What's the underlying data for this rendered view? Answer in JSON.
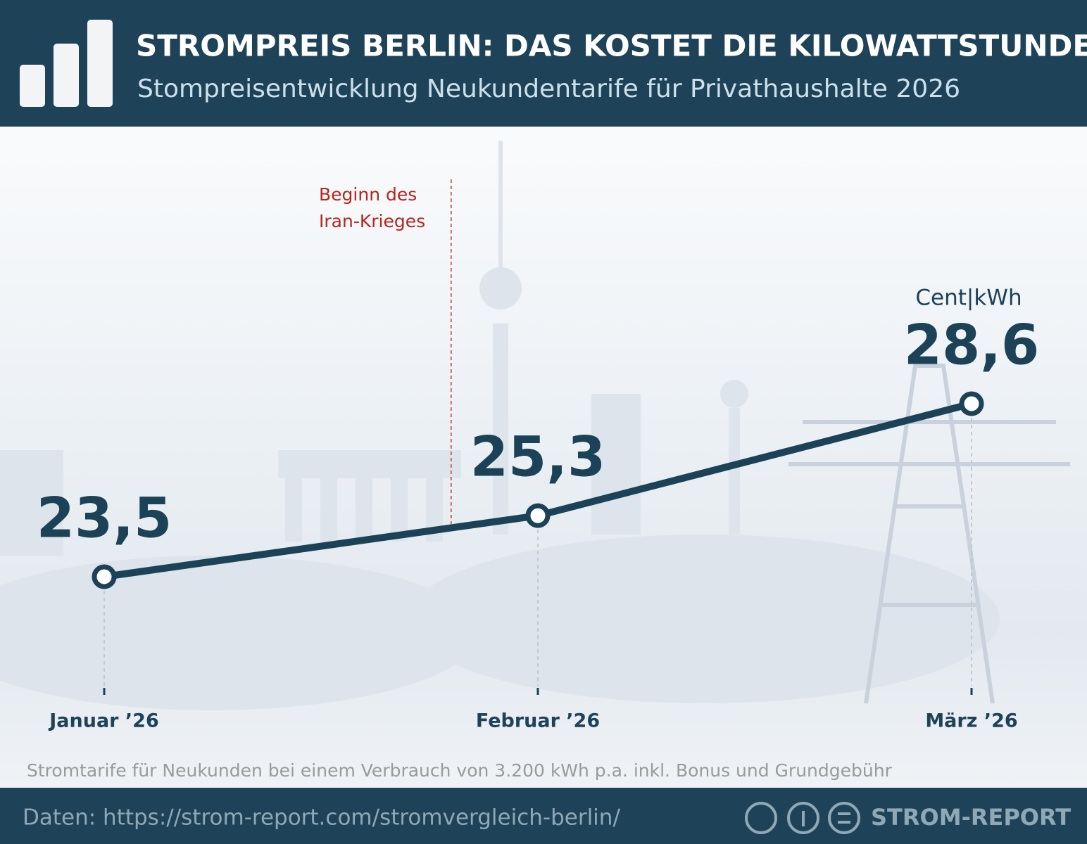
{
  "chart_data": {
    "type": "line",
    "title": "STROMPREIS BERLIN: DAS KOSTET DIE KILOWATTSTUNDE",
    "subtitle": "Stompreisentwicklung Neukundentarife für Privathaushalte 2026",
    "categories": [
      "Januar ’26",
      "Februar ’26",
      "März ’26"
    ],
    "values": [
      23.5,
      25.3,
      28.6
    ],
    "value_labels": [
      "23,5",
      "25,3",
      "28,6"
    ],
    "color": "#1b4257",
    "unit_label": "Cent|kWh",
    "annotation": [
      "Beginn des",
      "Iran-Krieges"
    ],
    "note": "Stromtarife für Neukunden bei einem Verbrauch von 3.200 kWh p.a. inkl. Bonus und Grundgebühr",
    "source": "Daten: https://strom-report.com/stromvergleich-berlin/",
    "brand": "STROM-REPORT"
  }
}
